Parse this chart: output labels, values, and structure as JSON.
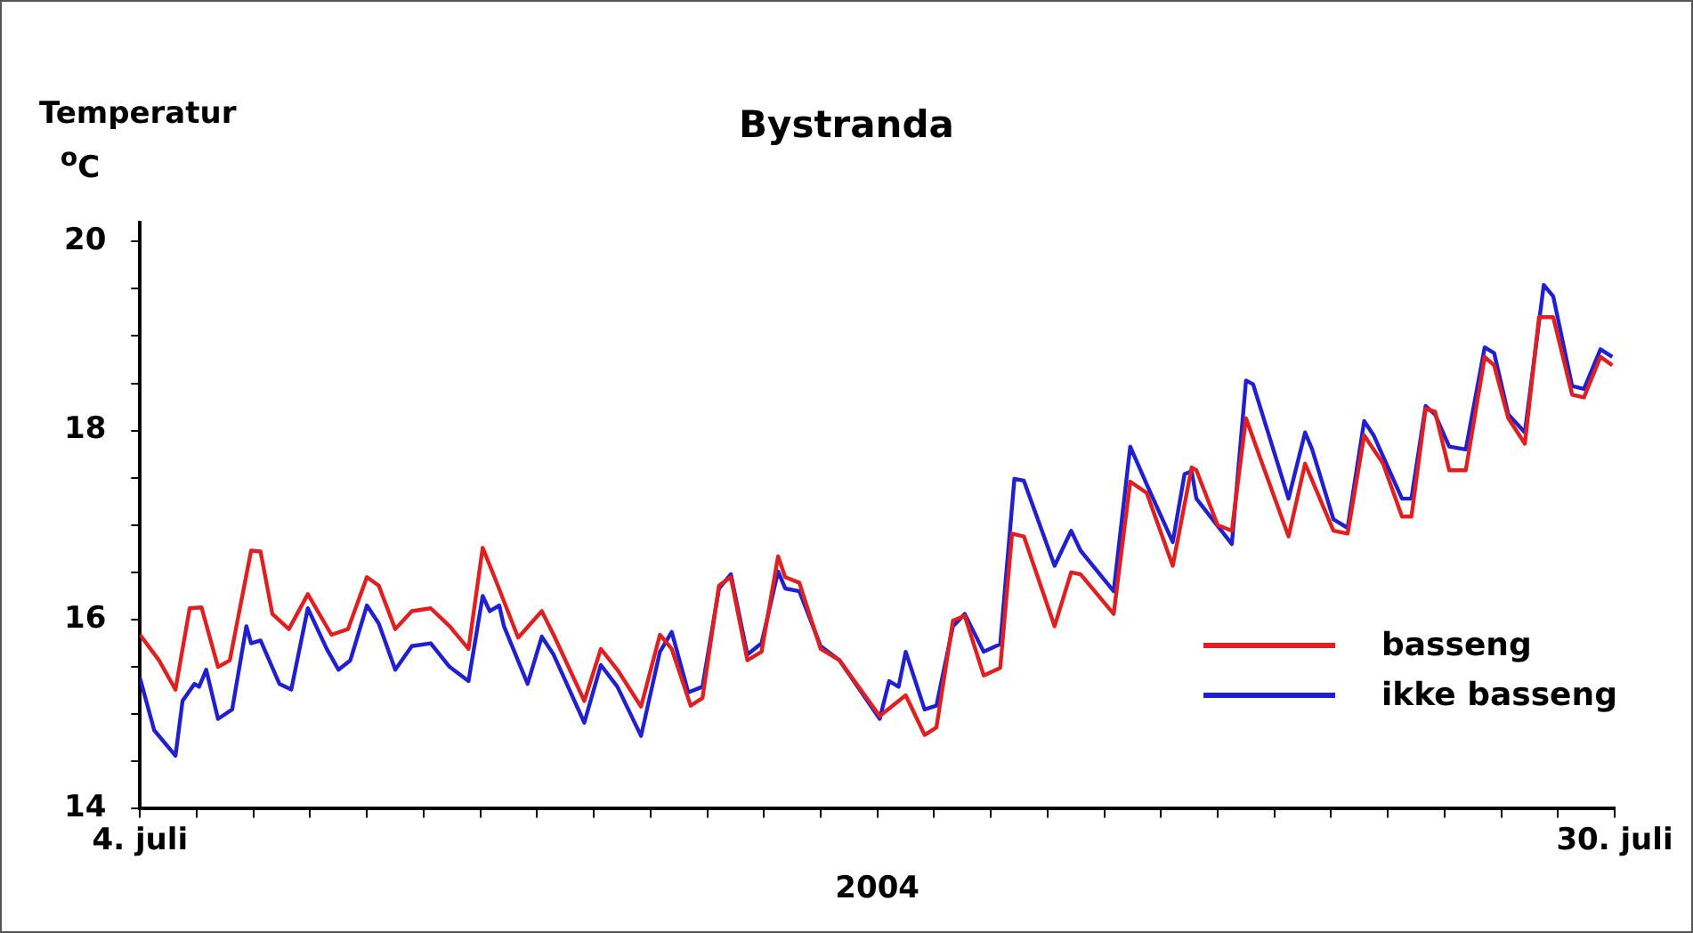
{
  "chart_data": {
    "type": "line",
    "title": "Bystranda",
    "ylabel": "Temperatur $^{o}$C",
    "xlabel": "2004",
    "xlim": [
      "2004-07-04",
      "2004-07-30"
    ],
    "xticks": [
      {
        "value": "2004-07-04",
        "label": "4. juli"
      },
      {
        "value": "2004-07-05",
        "label": null
      },
      {
        "value": "2004-07-06",
        "label": null
      },
      {
        "value": "2004-07-07",
        "label": null
      },
      {
        "value": "2004-07-08",
        "label": null
      },
      {
        "value": "2004-07-09",
        "label": null
      },
      {
        "value": "2004-07-10",
        "label": null
      },
      {
        "value": "2004-07-11",
        "label": null
      },
      {
        "value": "2004-07-12",
        "label": null
      },
      {
        "value": "2004-07-13",
        "label": null
      },
      {
        "value": "2004-07-14",
        "label": null
      },
      {
        "value": "2004-07-15",
        "label": null
      },
      {
        "value": "2004-07-16",
        "label": null
      },
      {
        "value": "2004-07-17",
        "label": null
      },
      {
        "value": "2004-07-18",
        "label": null
      },
      {
        "value": "2004-07-19",
        "label": null
      },
      {
        "value": "2004-07-20",
        "label": null
      },
      {
        "value": "2004-07-21",
        "label": null
      },
      {
        "value": "2004-07-22",
        "label": null
      },
      {
        "value": "2004-07-23",
        "label": null
      },
      {
        "value": "2004-07-24",
        "label": null
      },
      {
        "value": "2004-07-25",
        "label": null
      },
      {
        "value": "2004-07-26",
        "label": null
      },
      {
        "value": "2004-07-27",
        "label": null
      },
      {
        "value": "2004-07-28",
        "label": null
      },
      {
        "value": "2004-07-29",
        "label": null
      },
      {
        "value": "2004-07-30",
        "label": "30. juli"
      }
    ],
    "ylim": [
      14,
      20.2
    ],
    "yticks": [
      14,
      {
        "value": 14.5,
        "label": null
      },
      {
        "value": 15,
        "label": null
      },
      {
        "value": 15.5,
        "label": null
      },
      16,
      {
        "value": 16.5,
        "label": null
      },
      {
        "value": 17,
        "label": null
      },
      {
        "value": 17.5,
        "label": null
      },
      18,
      {
        "value": 18.5,
        "label": null
      },
      {
        "value": 19,
        "label": null
      },
      {
        "value": 19.5,
        "label": null
      },
      20
    ],
    "grid": false,
    "legend": "bottom right",
    "marker": "none",
    "line_style": "solid",
    "series": [
      {
        "name": "basseng",
        "color": "#e02020",
        "x": [
          "2004-07-04T00:00",
          "2004-07-04T08:00",
          "2004-07-04T15:00",
          "2004-07-04T21:00",
          "2004-07-05T02:00",
          "2004-07-05T09:00",
          "2004-07-05T14:00",
          "2004-07-05T23:00",
          "2004-07-06T03:00",
          "2004-07-06T08:00",
          "2004-07-06T15:00",
          "2004-07-06T23:00",
          "2004-07-07T09:00",
          "2004-07-07T16:00",
          "2004-07-08T00:00",
          "2004-07-08T05:00",
          "2004-07-08T12:00",
          "2004-07-08T19:00",
          "2004-07-09T03:00",
          "2004-07-09T11:00",
          "2004-07-09T19:00",
          "2004-07-10T01:00",
          "2004-07-10T06:00",
          "2004-07-10T16:00",
          "2004-07-11T02:00",
          "2004-07-11T07:00",
          "2004-07-11T20:00",
          "2004-07-12T03:00",
          "2004-07-12T10:00",
          "2004-07-12T20:00",
          "2004-07-13T04:00",
          "2004-07-13T09:00",
          "2004-07-13T17:00",
          "2004-07-13T22:00",
          "2004-07-14T05:00",
          "2004-07-14T10:00",
          "2004-07-14T17:00",
          "2004-07-14T23:00",
          "2004-07-15T06:00",
          "2004-07-15T09:00",
          "2004-07-15T15:00",
          "2004-07-16T00:00",
          "2004-07-16T08:00",
          "2004-07-17T01:00",
          "2004-07-17T12:00",
          "2004-07-17T20:00",
          "2004-07-18T01:00",
          "2004-07-18T08:00",
          "2004-07-18T13:00",
          "2004-07-18T21:00",
          "2004-07-19T04:00",
          "2004-07-19T09:00",
          "2004-07-19T14:00",
          "2004-07-20T03:00",
          "2004-07-20T10:00",
          "2004-07-20T14:00",
          "2004-07-21T04:00",
          "2004-07-21T11:00",
          "2004-07-21T18:00",
          "2004-07-22T05:00",
          "2004-07-22T13:00",
          "2004-07-22T15:00",
          "2004-07-23T00:00",
          "2004-07-23T06:00",
          "2004-07-23T12:00",
          "2004-07-23T18:00",
          "2004-07-24T06:00",
          "2004-07-24T13:00",
          "2004-07-25T01:00",
          "2004-07-25T07:00",
          "2004-07-25T14:00",
          "2004-07-25T22:00",
          "2004-07-26T06:00",
          "2004-07-26T10:00",
          "2004-07-26T16:00",
          "2004-07-26T20:00",
          "2004-07-27T02:00",
          "2004-07-27T09:00",
          "2004-07-27T17:00",
          "2004-07-27T21:00",
          "2004-07-28T03:00",
          "2004-07-28T10:00",
          "2004-07-28T16:00",
          "2004-07-28T22:00",
          "2004-07-29T06:00",
          "2004-07-29T11:00",
          "2004-07-29T18:00",
          "2004-07-29T23:00"
        ],
        "values": [
          15.84,
          15.57,
          15.26,
          16.12,
          16.13,
          15.5,
          15.57,
          16.73,
          16.72,
          16.06,
          15.9,
          16.27,
          15.84,
          15.9,
          16.45,
          16.36,
          15.9,
          16.09,
          16.12,
          15.93,
          15.69,
          16.76,
          16.45,
          15.81,
          16.09,
          15.84,
          15.14,
          15.69,
          15.47,
          15.08,
          15.84,
          15.69,
          15.09,
          15.17,
          16.36,
          16.45,
          15.57,
          15.66,
          16.67,
          16.45,
          16.39,
          15.69,
          15.57,
          14.98,
          15.2,
          14.78,
          14.86,
          15.99,
          16.04,
          15.41,
          15.49,
          16.91,
          16.88,
          15.93,
          16.5,
          16.48,
          16.06,
          17.46,
          17.34,
          16.57,
          17.61,
          17.58,
          17.0,
          16.94,
          18.13,
          17.71,
          16.88,
          17.65,
          16.94,
          16.91,
          17.95,
          17.65,
          17.09,
          17.09,
          18.23,
          18.2,
          17.58,
          17.58,
          18.78,
          18.69,
          18.13,
          17.86,
          19.2,
          19.2,
          18.38,
          18.35,
          18.78,
          18.69
        ]
      },
      {
        "name": "ikke basseng",
        "color": "#2020d0",
        "x": [
          "2004-07-04T00:00",
          "2004-07-04T06:00",
          "2004-07-04T15:00",
          "2004-07-04T18:00",
          "2004-07-04T23:00",
          "2004-07-05T01:00",
          "2004-07-05T04:00",
          "2004-07-05T09:00",
          "2004-07-05T15:00",
          "2004-07-05T21:00",
          "2004-07-05T23:00",
          "2004-07-06T03:00",
          "2004-07-06T11:00",
          "2004-07-06T16:00",
          "2004-07-06T23:00",
          "2004-07-07T07:00",
          "2004-07-07T12:00",
          "2004-07-07T17:00",
          "2004-07-08T00:00",
          "2004-07-08T05:00",
          "2004-07-08T12:00",
          "2004-07-08T19:00",
          "2004-07-09T03:00",
          "2004-07-09T11:00",
          "2004-07-09T19:00",
          "2004-07-10T01:00",
          "2004-07-10T04:00",
          "2004-07-10T08:00",
          "2004-07-10T10:00",
          "2004-07-10T20:00",
          "2004-07-11T02:00",
          "2004-07-11T07:00",
          "2004-07-11T20:00",
          "2004-07-12T03:00",
          "2004-07-12T10:00",
          "2004-07-12T20:00",
          "2004-07-13T04:00",
          "2004-07-13T09:00",
          "2004-07-13T16:00",
          "2004-07-13T22:00",
          "2004-07-14T05:00",
          "2004-07-14T10:00",
          "2004-07-14T17:00",
          "2004-07-14T23:00",
          "2004-07-15T06:00",
          "2004-07-15T09:00",
          "2004-07-15T15:00",
          "2004-07-16T00:00",
          "2004-07-16T08:00",
          "2004-07-17T01:00",
          "2004-07-17T05:00",
          "2004-07-17T09:00",
          "2004-07-17T12:00",
          "2004-07-17T20:00",
          "2004-07-18T01:00",
          "2004-07-18T08:00",
          "2004-07-18T13:00",
          "2004-07-18T21:00",
          "2004-07-19T04:00",
          "2004-07-19T10:00",
          "2004-07-19T14:00",
          "2004-07-20T03:00",
          "2004-07-20T10:00",
          "2004-07-20T14:00",
          "2004-07-21T04:00",
          "2004-07-21T11:00",
          "2004-07-21T18:00",
          "2004-07-22T05:00",
          "2004-07-22T10:00",
          "2004-07-22T13:00",
          "2004-07-22T15:00",
          "2004-07-23T06:00",
          "2004-07-23T12:00",
          "2004-07-23T15:00",
          "2004-07-24T06:00",
          "2004-07-24T13:00",
          "2004-07-24T16:00",
          "2004-07-25T01:00",
          "2004-07-25T07:00",
          "2004-07-25T14:00",
          "2004-07-25T18:00",
          "2004-07-26T06:00",
          "2004-07-26T10:00",
          "2004-07-26T16:00",
          "2004-07-26T20:00",
          "2004-07-27T02:00",
          "2004-07-27T09:00",
          "2004-07-27T17:00",
          "2004-07-27T21:00",
          "2004-07-28T03:00",
          "2004-07-28T10:00",
          "2004-07-28T18:00",
          "2004-07-28T22:00",
          "2004-07-29T06:00",
          "2004-07-29T11:00",
          "2004-07-29T18:00",
          "2004-07-29T23:00"
        ],
        "values": [
          15.38,
          14.83,
          14.56,
          15.14,
          15.32,
          15.29,
          15.47,
          14.95,
          15.05,
          15.93,
          15.75,
          15.78,
          15.32,
          15.26,
          16.12,
          15.69,
          15.47,
          15.57,
          16.15,
          15.96,
          15.47,
          15.72,
          15.75,
          15.5,
          15.35,
          16.25,
          16.09,
          16.15,
          15.93,
          15.32,
          15.82,
          15.63,
          14.91,
          15.52,
          15.29,
          14.77,
          15.66,
          15.87,
          15.23,
          15.29,
          16.33,
          16.48,
          15.63,
          15.75,
          16.51,
          16.33,
          16.3,
          15.72,
          15.57,
          14.95,
          15.35,
          15.29,
          15.66,
          15.05,
          15.09,
          15.93,
          16.06,
          15.66,
          15.74,
          17.49,
          17.47,
          16.57,
          16.94,
          16.73,
          16.3,
          17.83,
          17.43,
          16.82,
          17.54,
          17.57,
          17.28,
          16.8,
          18.53,
          18.49,
          17.28,
          17.98,
          17.8,
          17.06,
          16.97,
          18.1,
          17.95,
          17.28,
          17.28,
          18.26,
          18.17,
          17.83,
          17.8,
          18.88,
          18.82,
          18.17,
          17.98,
          19.54,
          19.42,
          18.47,
          18.44,
          18.86,
          18.78
        ]
      }
    ]
  }
}
